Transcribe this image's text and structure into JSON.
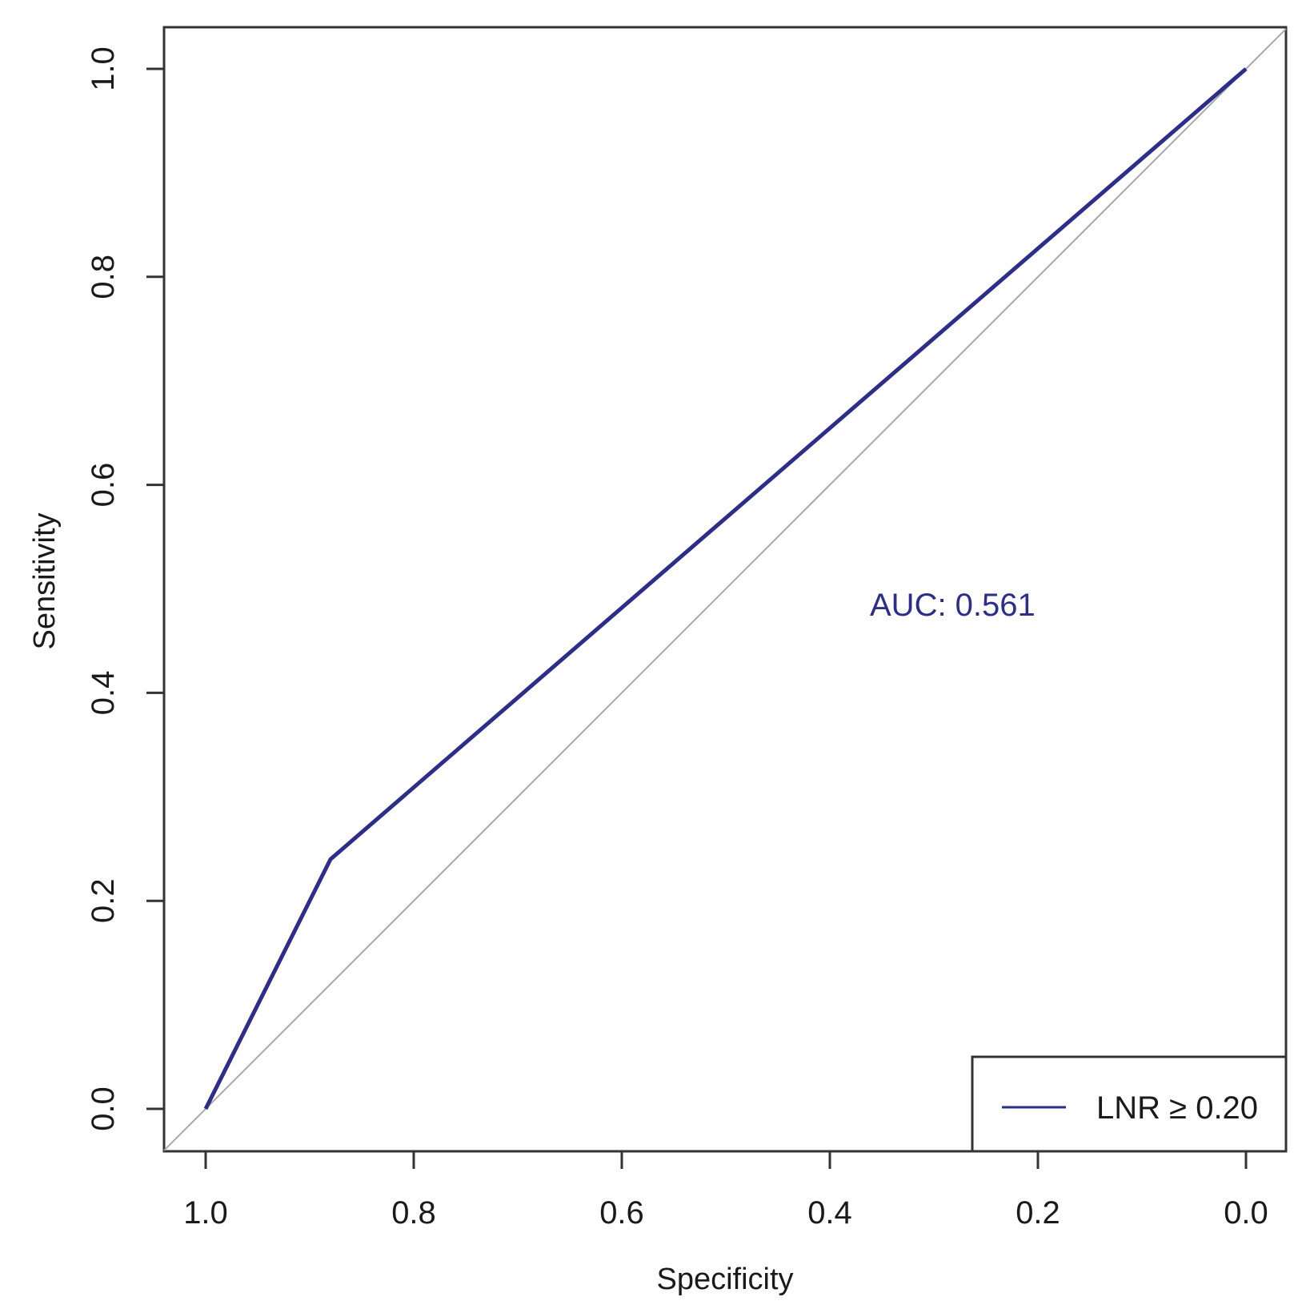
{
  "chart_data": {
    "type": "line",
    "xlabel": "Specificity",
    "ylabel": "Sensitivity",
    "xlim": [
      1.0,
      0.0
    ],
    "ylim": [
      0.0,
      1.0
    ],
    "x_reversed": true,
    "x_ticks": [
      "1.0",
      "0.8",
      "0.6",
      "0.4",
      "0.2",
      "0.0"
    ],
    "y_ticks": [
      "0.0",
      "0.2",
      "0.4",
      "0.6",
      "0.8",
      "1.0"
    ],
    "grid": false,
    "legend_position": "bottom-right",
    "series": [
      {
        "name": "LNR ≥ 0.20",
        "color": "#2d2d8a",
        "x": [
          1.0,
          0.88,
          0.0
        ],
        "y": [
          0.0,
          0.24,
          1.0
        ]
      }
    ],
    "reference_line": {
      "x": [
        1.0,
        0.0
      ],
      "y": [
        0.0,
        1.0
      ],
      "color": "#a8a8a8"
    },
    "annotation": {
      "text": "AUC: 0.561",
      "x": 0.3,
      "y": 0.485,
      "color": "#2d2d8a"
    }
  }
}
